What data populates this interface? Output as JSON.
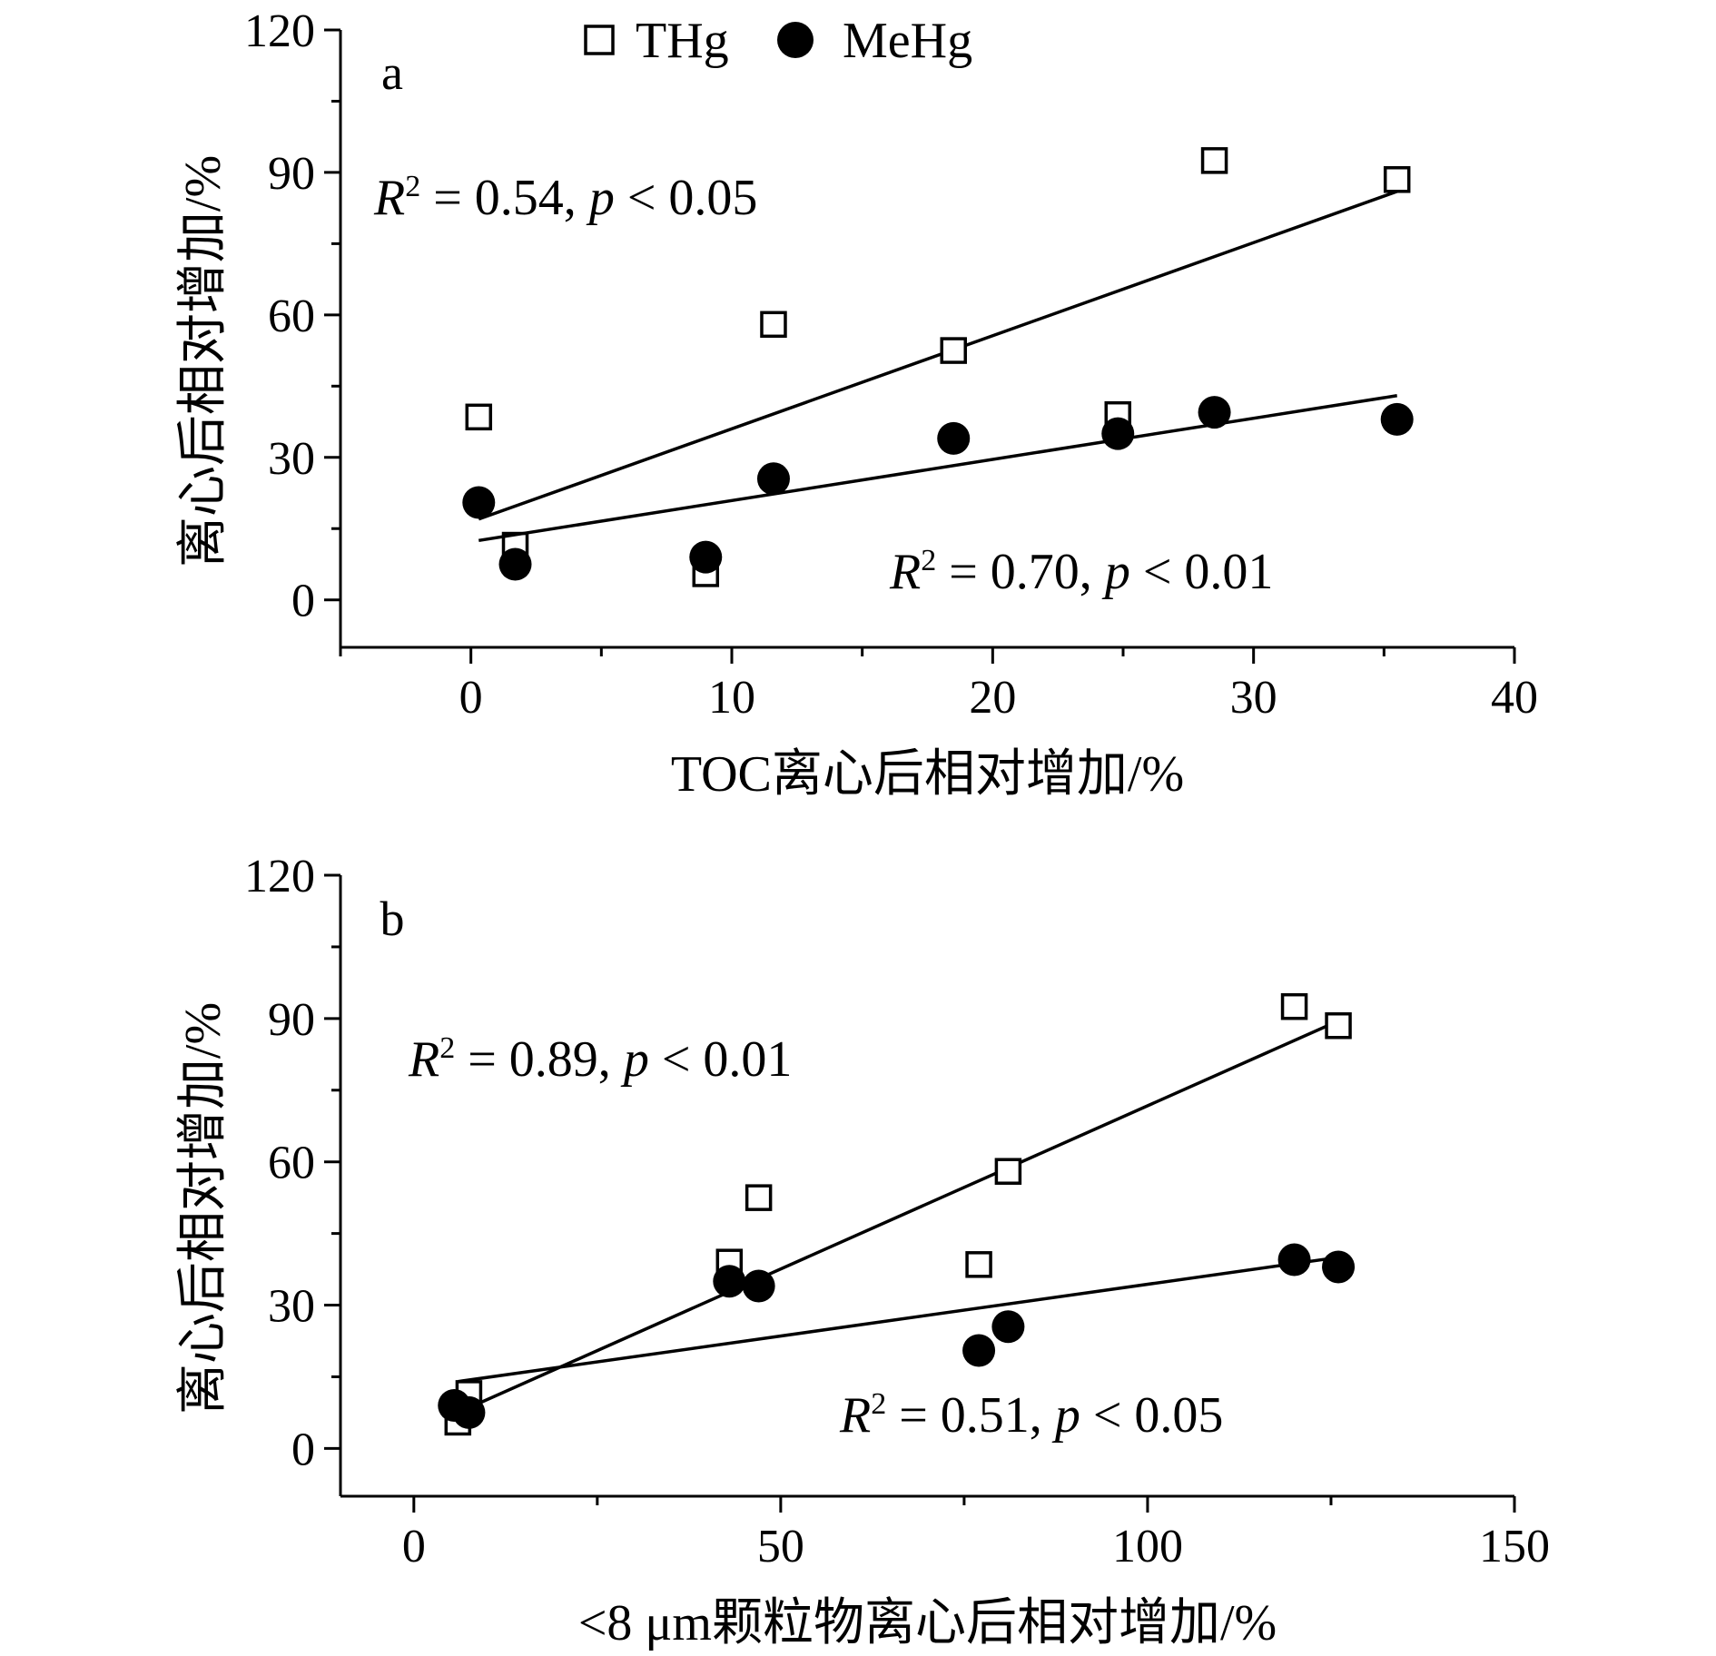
{
  "legend": [
    {
      "name": "THg",
      "marker": "open-square"
    },
    {
      "name": "MeHg",
      "marker": "filled-circle"
    }
  ],
  "chart_data": [
    {
      "type": "scatter",
      "panel": "a",
      "xlabel": "TOC离心后相对增加/%",
      "ylabel": "离心后相对增加/%",
      "xlim": [
        -5,
        40
      ],
      "ylim": [
        -10,
        120
      ],
      "xticks": [
        0,
        10,
        20,
        30,
        40
      ],
      "yticks": [
        0,
        30,
        60,
        90,
        120
      ],
      "series": [
        {
          "name": "THg",
          "marker": "open-square",
          "points": [
            [
              0.3,
              38.5
            ],
            [
              1.7,
              11.5
            ],
            [
              9,
              5.5
            ],
            [
              11.6,
              58
            ],
            [
              18.5,
              52.5
            ],
            [
              24.8,
              39
            ],
            [
              28.5,
              92.5
            ],
            [
              35.5,
              88.5
            ]
          ],
          "fit": {
            "x": [
              0.3,
              35.5
            ],
            "y": [
              17,
              86
            ]
          },
          "stat": {
            "r2_label": "R",
            "sup": "2",
            "text": " = 0.54, ",
            "p": "p",
            "rest": " < 0.05"
          }
        },
        {
          "name": "MeHg",
          "marker": "filled-circle",
          "points": [
            [
              0.3,
              20.5
            ],
            [
              1.7,
              7.5
            ],
            [
              9,
              9
            ],
            [
              11.6,
              25.5
            ],
            [
              18.5,
              34
            ],
            [
              24.8,
              35
            ],
            [
              28.5,
              39.5
            ],
            [
              35.5,
              38
            ]
          ],
          "fit": {
            "x": [
              0.3,
              35.5
            ],
            "y": [
              12.5,
              43
            ]
          },
          "stat": {
            "r2_label": "R",
            "sup": "2",
            "text": " = 0.70, ",
            "p": "p",
            "rest": " < 0.01"
          }
        }
      ]
    },
    {
      "type": "scatter",
      "panel": "b",
      "xlabel": "<8 μm颗粒物离心后相对增加/%",
      "ylabel": "离心后相对增加/%",
      "xlim": [
        -10,
        150
      ],
      "ylim": [
        -10,
        120
      ],
      "xticks": [
        0,
        50,
        100,
        150
      ],
      "yticks": [
        0,
        30,
        60,
        90,
        120
      ],
      "series": [
        {
          "name": "THg",
          "marker": "open-square",
          "points": [
            [
              6,
              5.5
            ],
            [
              7.5,
              11.5
            ],
            [
              43,
              39
            ],
            [
              47,
              52.5
            ],
            [
              77,
              38.5
            ],
            [
              81,
              58
            ],
            [
              120,
              92.5
            ],
            [
              126,
              88.5
            ]
          ],
          "fit": {
            "x": [
              6,
              126
            ],
            "y": [
              7.5,
              89.5
            ]
          },
          "stat": {
            "r2_label": "R",
            "sup": "2",
            "text": " = 0.89, ",
            "p": "p",
            "rest": " < 0.01"
          }
        },
        {
          "name": "MeHg",
          "marker": "filled-circle",
          "points": [
            [
              5.5,
              9
            ],
            [
              7.5,
              7.5
            ],
            [
              43,
              35
            ],
            [
              47,
              34
            ],
            [
              77,
              20.5
            ],
            [
              81,
              25.5
            ],
            [
              120,
              39.5
            ],
            [
              126,
              38
            ]
          ],
          "fit": {
            "x": [
              6,
              126
            ],
            "y": [
              14,
              40
            ]
          },
          "stat": {
            "r2_label": "R",
            "sup": "2",
            "text": " = 0.51, ",
            "p": "p",
            "rest": " < 0.05"
          }
        }
      ]
    }
  ]
}
